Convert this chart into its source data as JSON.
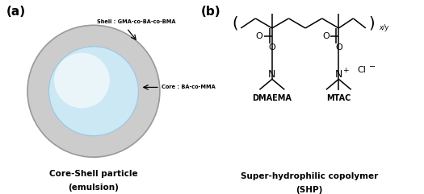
{
  "fig_width": 5.25,
  "fig_height": 2.41,
  "dpi": 100,
  "bg_color": "#ffffff",
  "panel_a_label": "(a)",
  "panel_b_label": "(b)",
  "shell_color": "#cccccc",
  "core_color": "#cce8f5",
  "shell_label": "Shell : GMA-co-BA-co-BMA",
  "core_label": "Core : BA-co-MMA",
  "caption_a1": "Core-Shell particle",
  "caption_a2": "(emulsion)",
  "caption_b1": "Super-hydrophilic copolymer",
  "caption_b2": "(SHP)",
  "dmaema_label": "DMAEMA",
  "mtac_label": "MTAC",
  "xy_label": "x/y"
}
